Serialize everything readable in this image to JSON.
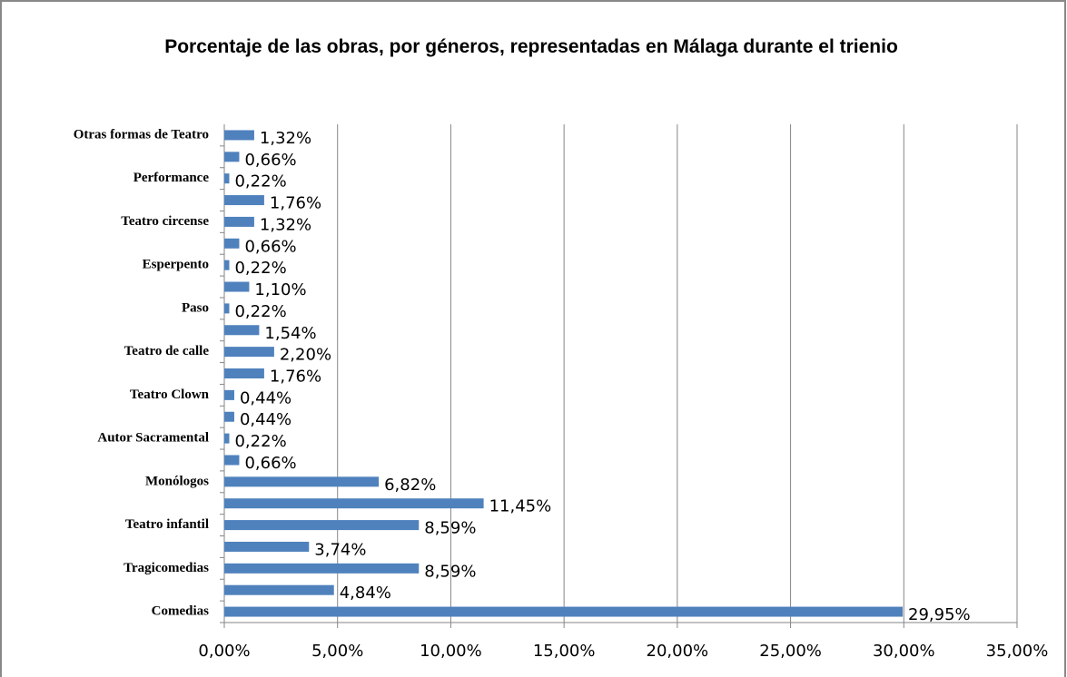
{
  "chart_data": {
    "type": "bar",
    "orientation": "horizontal",
    "title": "Porcentaje de las obras, por géneros, representadas en Málaga durante el trienio",
    "categories": [
      "Comedias",
      null,
      "Tragicomedias",
      null,
      "Teatro infantil",
      null,
      "Monólogos",
      null,
      "Autor Sacramental",
      null,
      "Teatro Clown",
      null,
      "Teatro de calle",
      null,
      "Paso",
      null,
      "Esperpento",
      null,
      "Teatro circense",
      null,
      "Performance",
      null,
      "Otras formas de Teatro"
    ],
    "values": [
      29.95,
      4.84,
      8.59,
      3.74,
      8.59,
      11.45,
      6.82,
      0.66,
      0.22,
      0.44,
      0.44,
      1.76,
      2.2,
      1.54,
      0.22,
      1.1,
      0.22,
      0.66,
      1.32,
      1.76,
      0.22,
      0.66,
      1.32
    ],
    "value_labels": [
      "29,95%",
      "4,84%",
      "8,59%",
      "3,74%",
      "8,59%",
      "11,45%",
      "6,82%",
      "0,66%",
      "0,22%",
      "0,44%",
      "0,44%",
      "1,76%",
      "2,20%",
      "1,54%",
      "0,22%",
      "1,10%",
      "0,22%",
      "0,66%",
      "1,32%",
      "1,76%",
      "0,22%",
      "0,66%",
      "1,32%"
    ],
    "color": "#4f81bd",
    "xlim": [
      0,
      35
    ],
    "xticks": [
      {
        "value": 0,
        "label": "0,00%"
      },
      {
        "value": 5,
        "label": "5,00%"
      },
      {
        "value": 10,
        "label": "10,00%"
      },
      {
        "value": 15,
        "label": "15,00%"
      },
      {
        "value": 20,
        "label": "20,00%"
      },
      {
        "value": 25,
        "label": "25,00%"
      },
      {
        "value": 30,
        "label": "30,00%"
      },
      {
        "value": 35,
        "label": "35,00%"
      }
    ],
    "grid": true
  }
}
